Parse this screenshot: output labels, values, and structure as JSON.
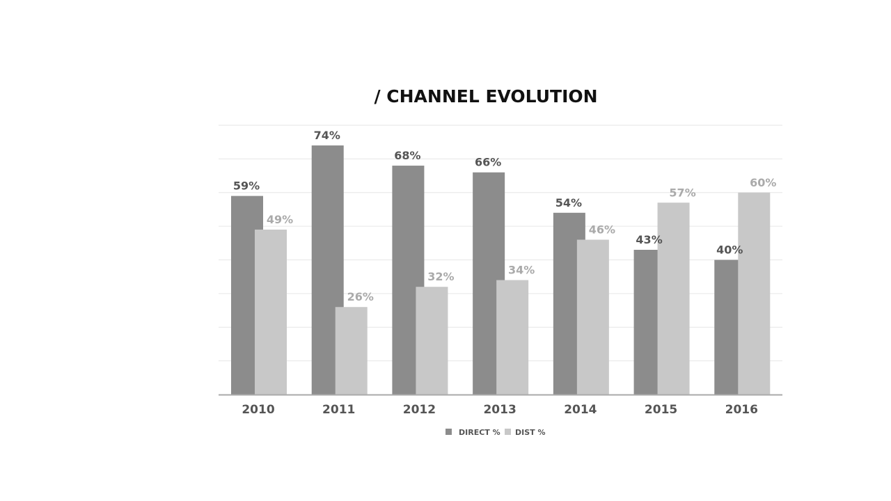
{
  "chart_data": {
    "type": "bar",
    "title": "/ CHANNEL EVOLUTION",
    "categories": [
      "2010",
      "2011",
      "2012",
      "2013",
      "2014",
      "2015",
      "2016"
    ],
    "series": [
      {
        "name": "DIRECT %",
        "values": [
          59,
          74,
          68,
          66,
          54,
          43,
          40
        ],
        "labels": [
          "59%",
          "74%",
          "68%",
          "66%",
          "54%",
          "43%",
          "40%"
        ],
        "color": "#8c8c8c",
        "label_color": "#555555"
      },
      {
        "name": "DIST %",
        "values": [
          49,
          26,
          32,
          34,
          46,
          57,
          60
        ],
        "labels": [
          "49%",
          "26%",
          "32%",
          "34%",
          "46%",
          "57%",
          "60%"
        ],
        "color": "#c8c8c8",
        "label_color": "#aaaaaa"
      }
    ],
    "ylim": [
      0,
      80
    ],
    "grid": true,
    "legend_position": "bottom-center"
  }
}
